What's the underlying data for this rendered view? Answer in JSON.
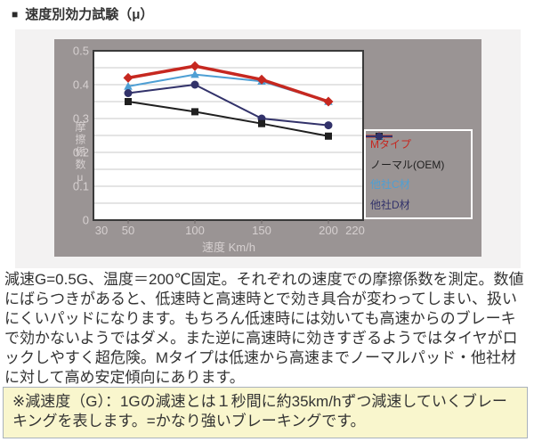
{
  "header": {
    "bullet": "■",
    "title": "速度別効力試験（μ）"
  },
  "chart_data": {
    "type": "line",
    "xlabel": "速度 Km/h",
    "ylabel": "摩擦係数μ",
    "xlim": [
      30,
      220
    ],
    "ylim": [
      0,
      0.5
    ],
    "x_ticks": [
      30,
      50,
      100,
      150,
      200,
      220
    ],
    "x_tick_labels": [
      "30",
      "50",
      "100",
      "150",
      "200",
      "220"
    ],
    "y_ticks": [
      0,
      0.1,
      0.2,
      0.3,
      0.4,
      0.5
    ],
    "y_tick_labels": [
      "0",
      "0.1",
      "0.2",
      "0.3",
      "0.4",
      "0.5"
    ],
    "grid_step_y": 0.05,
    "grid": true,
    "legend_position": "inside-right",
    "x": [
      50,
      100,
      150,
      200
    ],
    "series": [
      {
        "name": "Mタイプ",
        "color": "#c62820",
        "marker": "diamond",
        "line_width": 3.5,
        "values": [
          0.42,
          0.455,
          0.415,
          0.35
        ]
      },
      {
        "name": "ノーマル(OEM)",
        "color": "#1f1f1f",
        "marker": "square",
        "line_width": 2,
        "values": [
          0.35,
          0.32,
          0.285,
          0.248
        ]
      },
      {
        "name": "他社C材",
        "color": "#4e9fd4",
        "marker": "triangle",
        "line_width": 2,
        "values": [
          0.395,
          0.43,
          0.41,
          0.35
        ]
      },
      {
        "name": "他社D材",
        "color": "#32326a",
        "marker": "circle",
        "line_width": 2,
        "values": [
          0.375,
          0.4,
          0.3,
          0.28
        ]
      }
    ],
    "colors": {
      "chart_bg": "#9a9494",
      "plot_bg": "#ffffff",
      "plot_border": "#3a3a3a",
      "grid": "#c9c9c9",
      "tick_text": "#d6d0d0",
      "tick_mark": "#6e6868"
    }
  },
  "body": {
    "paragraph": "減速G=0.5G、温度＝200℃固定。それぞれの速度での摩擦係数を測定。数値にばらつきがあると、低速時と高速時とで効き具合が変わってしまい、扱いにくいパッドになります。もちろん低速時には効いても高速からのブレーキで効かないようではダメ。また逆に高速時に効きすぎるようではタイヤがロックしやすく超危険。Mタイプは低速から高速までノーマルパッド・他社材に対して高め安定傾向にあります。",
    "note": "※減速度（G）：1Gの減速とは１秒間に約35km/hずつ減速していくブレーキングを表します。=かなり強いブレーキングです。"
  },
  "colors": {
    "panel_bg": "#f3f2f2",
    "note_bg": "#f9f6cd",
    "note_border": "#a9b2bc",
    "body_text": "#333333"
  }
}
